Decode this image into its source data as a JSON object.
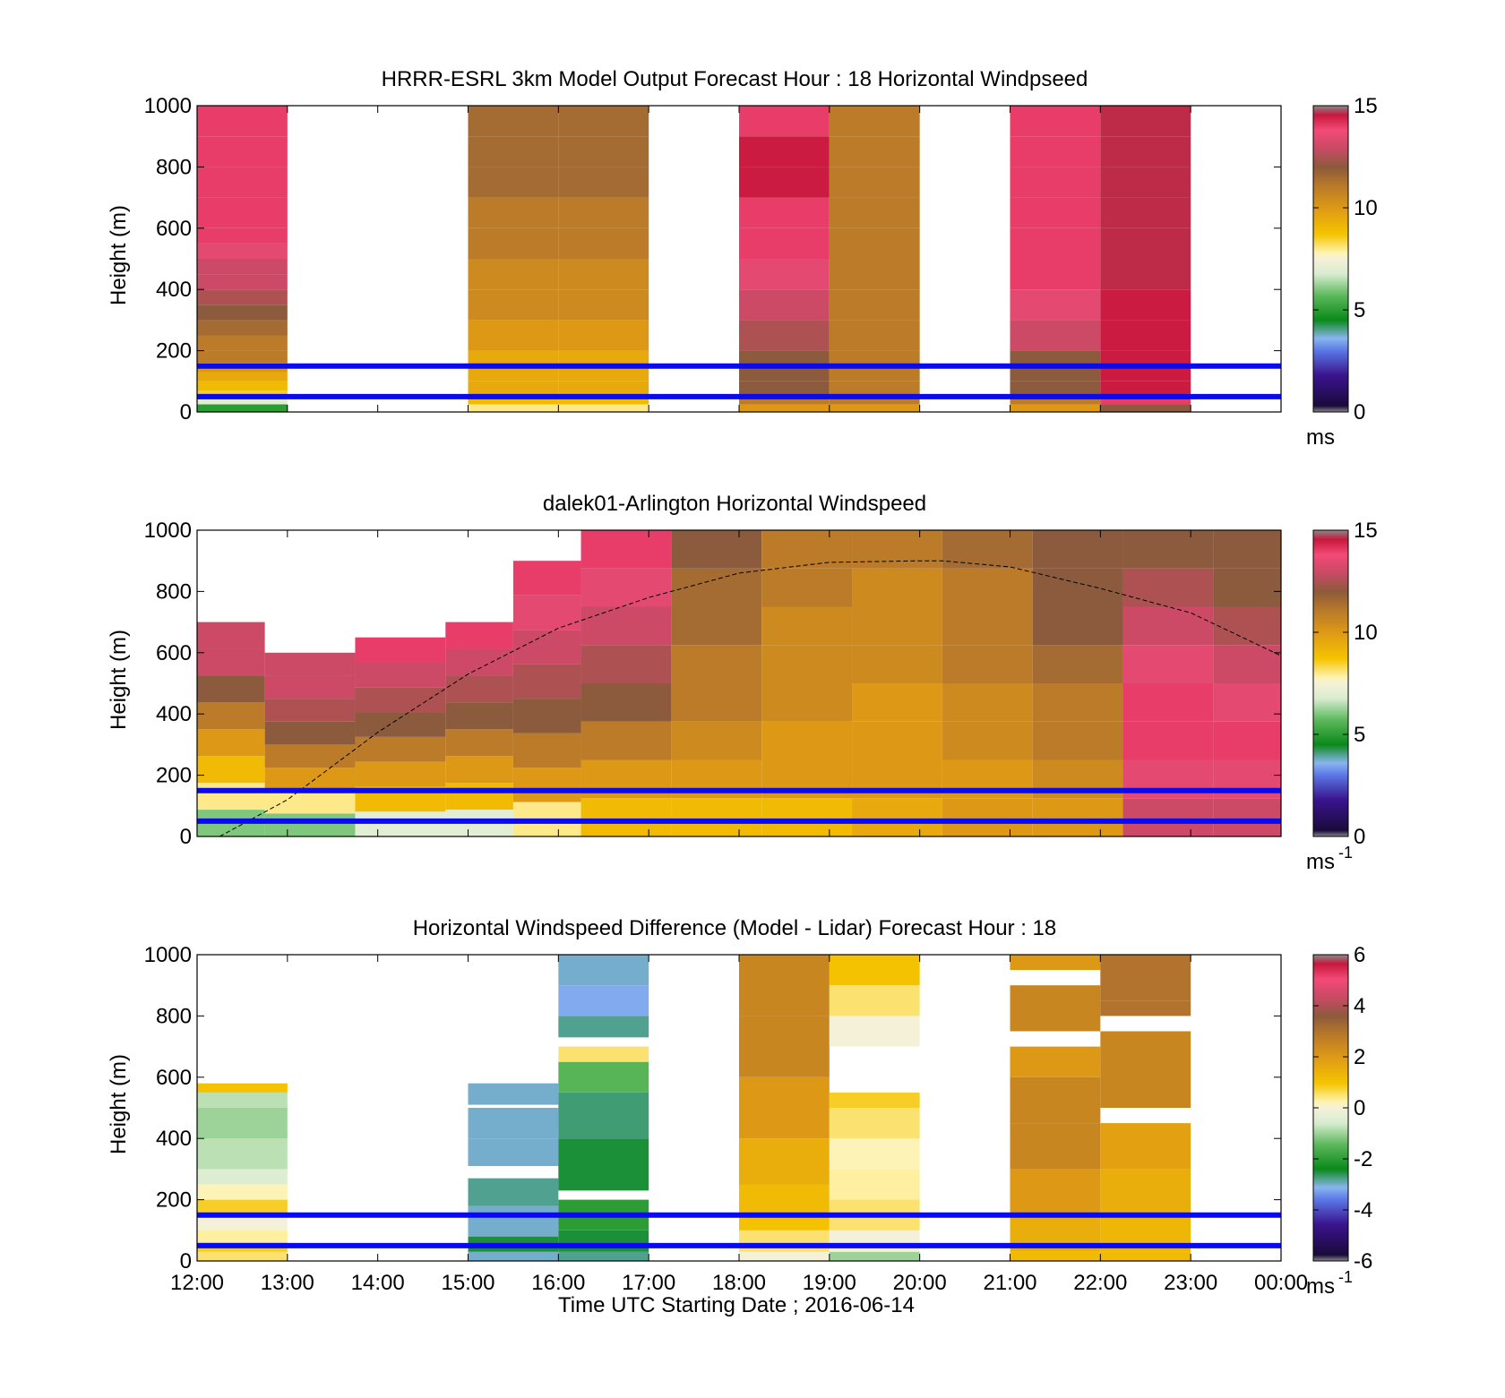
{
  "figure": {
    "xlabel": "Time UTC  Starting Date ; 2016-06-14",
    "x_tick_labels": [
      "12:00",
      "13:00",
      "14:00",
      "15:00",
      "16:00",
      "17:00",
      "18:00",
      "19:00",
      "20:00",
      "21:00",
      "22:00",
      "23:00",
      "00:00"
    ],
    "y_tick_labels": [
      "0",
      "200",
      "400",
      "600",
      "800",
      "1000"
    ],
    "ylabel": "Height (m)",
    "colors": {
      "blue_line": "#0a0aee",
      "missing": "#ffffff"
    }
  },
  "panels": [
    {
      "title": "HRRR-ESRL 3km Model Output   Forecast Hour : 18 Horizontal Windpseed",
      "cbar_ticks": [
        "0",
        "5",
        "10",
        "15"
      ],
      "cbar_unit": "ms",
      "cbar_unit_sup": ""
    },
    {
      "title": "dalek01-Arlington  Horizontal Windspeed",
      "cbar_ticks": [
        "0",
        "5",
        "10",
        "15"
      ],
      "cbar_unit": "ms",
      "cbar_unit_sup": "-1"
    },
    {
      "title": "Horizontal Windspeed Difference (Model - Lidar) Forecast Hour : 18",
      "cbar_ticks": [
        "-6",
        "-4",
        "-2",
        "0",
        "2",
        "4",
        "6"
      ],
      "cbar_unit": "ms",
      "cbar_unit_sup": "-1"
    }
  ],
  "chart_data": [
    {
      "type": "heatmap",
      "title": "HRRR-ESRL 3km Model Output   Forecast Hour : 18 Horizontal Windpseed",
      "xlabel": "",
      "ylabel": "Height (m)",
      "xlim_hours": [
        12,
        24
      ],
      "ylim": [
        0,
        1000
      ],
      "clim": [
        0,
        15
      ],
      "colorbar_unit": "ms",
      "reference_lines_m": [
        50,
        150
      ],
      "columns": [
        {
          "start": 12,
          "end": 13,
          "heights": [
            25,
            50,
            70,
            100,
            130,
            160,
            200,
            250,
            300,
            350,
            400,
            450,
            500,
            550,
            600,
            700,
            800,
            900,
            1000
          ],
          "values": [
            5,
            7,
            8.5,
            9,
            9.5,
            10,
            11,
            11,
            11.5,
            12,
            12.5,
            13,
            13,
            13.5,
            14,
            14,
            14,
            14,
            14
          ]
        },
        {
          "start": 15,
          "end": 16,
          "heights": [
            25,
            50,
            100,
            150,
            200,
            300,
            400,
            500,
            600,
            700,
            800,
            900,
            1000
          ],
          "values": [
            8,
            9,
            9.5,
            9.5,
            9.5,
            10,
            10.5,
            10.5,
            11,
            11,
            11.5,
            11.5,
            11.5
          ]
        },
        {
          "start": 16,
          "end": 17,
          "heights": [
            25,
            50,
            100,
            150,
            200,
            300,
            400,
            500,
            600,
            700,
            800,
            900,
            1000
          ],
          "values": [
            8,
            9,
            9.5,
            9.5,
            9.5,
            10,
            10.5,
            10.5,
            11,
            11,
            11.5,
            11.5,
            11.5
          ]
        },
        {
          "start": 18,
          "end": 19,
          "heights": [
            25,
            50,
            100,
            150,
            200,
            300,
            400,
            500,
            600,
            700,
            800,
            900,
            1000
          ],
          "values": [
            10,
            11,
            12,
            12,
            12,
            12.5,
            13,
            13.5,
            14,
            14,
            14.5,
            14.5,
            14
          ]
        },
        {
          "start": 19,
          "end": 20,
          "heights": [
            25,
            50,
            100,
            150,
            200,
            300,
            400,
            500,
            600,
            700,
            800,
            900,
            1000
          ],
          "values": [
            10,
            11,
            11,
            11,
            11,
            11,
            11,
            11,
            11,
            11,
            11,
            11,
            11
          ]
        },
        {
          "start": 21,
          "end": 22,
          "heights": [
            25,
            50,
            100,
            150,
            200,
            300,
            400,
            500,
            600,
            700,
            800,
            900,
            1000
          ],
          "values": [
            10,
            11,
            12,
            12,
            12,
            13,
            13.5,
            14,
            14,
            14,
            14,
            14,
            14
          ]
        },
        {
          "start": 22,
          "end": 23,
          "heights": [
            25,
            50,
            100,
            150,
            200,
            300,
            400,
            500,
            600,
            700,
            800,
            900,
            1000
          ],
          "values": [
            12,
            14,
            14.5,
            14.5,
            14.5,
            14.5,
            14.5,
            15,
            15,
            15,
            15,
            15,
            15
          ]
        }
      ]
    },
    {
      "type": "heatmap",
      "title": "dalek01-Arlington  Horizontal Windspeed",
      "xlabel": "",
      "ylabel": "Height (m)",
      "xlim_hours": [
        12,
        24
      ],
      "ylim": [
        0,
        1000
      ],
      "clim": [
        0,
        15
      ],
      "colorbar_unit": "ms-1",
      "reference_lines_m": [
        50,
        150
      ],
      "boundary_layer_curve": {
        "x_hours": [
          12.25,
          13,
          14,
          15,
          16,
          17,
          18,
          19,
          20,
          20.25,
          21,
          22,
          23,
          24
        ],
        "height_m": [
          0,
          120,
          340,
          530,
          680,
          780,
          860,
          895,
          900,
          900,
          880,
          810,
          730,
          590
        ]
      },
      "profiles": [
        {
          "start": 12,
          "end": 12.75,
          "top": 700,
          "values": [
            6,
            8,
            9,
            10,
            11,
            12,
            13,
            13
          ]
        },
        {
          "start": 12.75,
          "end": 13.75,
          "top": 600,
          "values": [
            6,
            8,
            10,
            11,
            12,
            12.5,
            13,
            13
          ]
        },
        {
          "start": 13.75,
          "end": 14.75,
          "top": 650,
          "values": [
            7,
            9,
            10,
            11,
            12,
            12.5,
            13,
            14
          ]
        },
        {
          "start": 14.75,
          "end": 15.5,
          "top": 700,
          "values": [
            7,
            9,
            10,
            11,
            12,
            12.5,
            13,
            14
          ]
        },
        {
          "start": 15.5,
          "end": 16.25,
          "top": 900,
          "values": [
            8,
            10,
            11,
            12,
            12.5,
            13,
            13.5,
            14
          ]
        },
        {
          "start": 16.25,
          "end": 17.25,
          "top": 1000,
          "values": [
            9,
            10,
            11,
            12,
            12.5,
            13,
            13.5,
            14
          ]
        },
        {
          "start": 17.25,
          "end": 18.25,
          "top": 1000,
          "values": [
            9,
            10,
            10.5,
            11,
            11,
            11.5,
            11.5,
            12
          ]
        },
        {
          "start": 18.25,
          "end": 19.25,
          "top": 1000,
          "values": [
            9,
            10,
            10,
            10.5,
            10.5,
            10.5,
            11,
            11
          ]
        },
        {
          "start": 19.25,
          "end": 20.25,
          "top": 1000,
          "values": [
            9.5,
            10,
            10,
            10,
            10.5,
            10.5,
            10.5,
            11
          ]
        },
        {
          "start": 20.25,
          "end": 21.25,
          "top": 1000,
          "values": [
            10,
            10,
            10.5,
            10.5,
            11,
            11,
            11,
            11.5
          ]
        },
        {
          "start": 21.25,
          "end": 22.25,
          "top": 1000,
          "values": [
            10,
            10.5,
            11,
            11,
            11.5,
            12,
            12,
            12
          ]
        },
        {
          "start": 22.25,
          "end": 23.25,
          "top": 1000,
          "values": [
            13,
            13.5,
            14,
            14,
            13.5,
            13,
            12.5,
            12
          ]
        },
        {
          "start": 23.25,
          "end": 24,
          "top": 1000,
          "values": [
            13,
            13.5,
            14,
            13.5,
            13,
            12.5,
            12,
            12
          ]
        }
      ]
    },
    {
      "type": "heatmap",
      "title": "Horizontal Windspeed Difference (Model - Lidar) Forecast Hour : 18",
      "xlabel": "Time UTC  Starting Date ; 2016-06-14",
      "ylabel": "Height (m)",
      "xlim_hours": [
        12,
        24
      ],
      "ylim": [
        0,
        1000
      ],
      "clim": [
        -6,
        6
      ],
      "colorbar_unit": "ms-1",
      "reference_lines_m": [
        50,
        150
      ],
      "columns": [
        {
          "start": 12,
          "end": 13,
          "heights": [
            30,
            60,
            100,
            150,
            200,
            250,
            300,
            400,
            500,
            550,
            580
          ],
          "values": [
            0.5,
            0.8,
            0.3,
            0,
            0.8,
            0.2,
            -0.5,
            -0.8,
            -1,
            -0.8,
            1
          ]
        },
        {
          "start": 15,
          "end": 16,
          "heights": [
            30,
            80,
            130,
            180,
            270,
            310,
            400,
            500,
            510,
            580
          ],
          "values": [
            -3,
            -2.5,
            -3,
            -3,
            -2.8,
            null,
            -3,
            -3,
            null,
            -3
          ]
        },
        {
          "start": 16,
          "end": 17,
          "heights": [
            30,
            100,
            200,
            230,
            400,
            550,
            650,
            700,
            730,
            800,
            900,
            1000
          ],
          "values": [
            -2.8,
            -2.5,
            -2,
            null,
            -2.5,
            -2.7,
            -1.5,
            0.5,
            null,
            -2.8,
            -3.2,
            -3
          ]
        },
        {
          "start": 18,
          "end": 19,
          "heights": [
            30,
            100,
            150,
            250,
            400,
            600,
            800,
            1000
          ],
          "values": [
            0,
            0.5,
            1,
            1.2,
            1.5,
            2,
            2.5,
            2.5
          ]
        },
        {
          "start": 19,
          "end": 20,
          "heights": [
            30,
            100,
            200,
            300,
            400,
            500,
            550,
            600,
            700,
            800,
            900,
            1000
          ],
          "values": [
            -1,
            0,
            0.5,
            0.3,
            0.2,
            0.5,
            0.8,
            null,
            null,
            0,
            0.5,
            1
          ]
        },
        {
          "start": 21,
          "end": 22,
          "heights": [
            30,
            150,
            300,
            450,
            600,
            700,
            750,
            900,
            950,
            1000
          ],
          "values": [
            1.2,
            1.5,
            2,
            2.5,
            2.5,
            2,
            null,
            2.5,
            null,
            2
          ]
        },
        {
          "start": 22,
          "end": 23,
          "heights": [
            30,
            150,
            300,
            450,
            500,
            750,
            800,
            850,
            1000
          ],
          "values": [
            1.2,
            1.3,
            1.5,
            1.8,
            null,
            2.5,
            null,
            3,
            3
          ]
        }
      ]
    }
  ]
}
